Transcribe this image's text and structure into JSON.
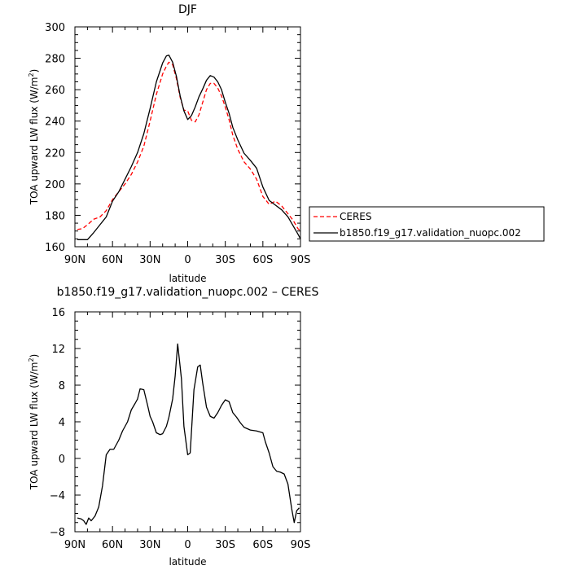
{
  "chart_data": [
    {
      "type": "line",
      "title": "DJF",
      "xlabel": "latitude",
      "ylabel": "TOA upward LW flux (W/m²)",
      "ylabel_parts": {
        "main": "TOA upward LW flux (W/m",
        "sup": "2",
        "close": ")"
      },
      "xlim": [
        90,
        -90
      ],
      "ylim": [
        160,
        300
      ],
      "x_ticks": [
        {
          "value": 90,
          "label": "90N"
        },
        {
          "value": 60,
          "label": "60N"
        },
        {
          "value": 30,
          "label": "30N"
        },
        {
          "value": 0,
          "label": "0"
        },
        {
          "value": -30,
          "label": "30S"
        },
        {
          "value": -60,
          "label": "60S"
        },
        {
          "value": -90,
          "label": "90S"
        }
      ],
      "y_ticks": [
        160,
        180,
        200,
        220,
        240,
        260,
        280,
        300
      ],
      "y_tick_labels": [
        "160",
        "180",
        "200",
        "220",
        "240",
        "260",
        "280",
        "300"
      ],
      "legend": {
        "placement": "right",
        "entries": [
          "CERES",
          "b1850.f19_g17.validation_nuopc.002"
        ]
      },
      "series": [
        {
          "name": "CERES",
          "color": "#ff0000",
          "dash": "dashed",
          "x": [
            88,
            84,
            80,
            75,
            70,
            65,
            60,
            55,
            50,
            45,
            40,
            35,
            30,
            25,
            20,
            17,
            15,
            12,
            9,
            6,
            3,
            0,
            -3,
            -6,
            -9,
            -12,
            -15,
            -18,
            -21,
            -24,
            -27,
            -30,
            -33,
            -36,
            -40,
            -45,
            -50,
            -55,
            -60,
            -65,
            -70,
            -75,
            -80,
            -84,
            -88,
            -90
          ],
          "y": [
            171,
            171.5,
            174,
            177.5,
            179,
            183,
            190,
            195,
            200,
            206,
            214,
            224,
            240,
            257,
            270,
            275,
            277.5,
            276,
            267,
            255,
            247,
            246.5,
            240.5,
            239.5,
            244,
            252,
            260,
            264,
            264,
            261,
            256,
            249,
            241,
            231,
            222,
            214,
            209.5,
            203,
            192,
            187,
            189,
            186,
            181,
            177,
            171.5,
            170
          ]
        },
        {
          "name": "b1850.f19_g17.validation_nuopc.002",
          "color": "#000000",
          "dash": "solid",
          "x": [
            88,
            84,
            80,
            75,
            70,
            65,
            60,
            55,
            50,
            45,
            40,
            35,
            30,
            25,
            20,
            17,
            15,
            12,
            9,
            6,
            3,
            0,
            -3,
            -6,
            -9,
            -12,
            -15,
            -18,
            -21,
            -24,
            -27,
            -30,
            -33,
            -36,
            -40,
            -45,
            -50,
            -55,
            -60,
            -65,
            -70,
            -75,
            -80,
            -84,
            -88,
            -90
          ],
          "y": [
            164.5,
            164.5,
            164.5,
            169,
            174,
            179,
            189,
            195,
            203,
            211,
            220,
            232,
            248,
            265,
            277,
            281.5,
            282,
            277.5,
            268.5,
            256,
            246.5,
            241,
            243.5,
            249,
            255.5,
            260.5,
            266,
            269,
            268,
            265,
            260,
            252,
            245,
            236,
            228,
            219.5,
            215,
            210,
            198,
            189.5,
            186.5,
            183.5,
            179,
            173.5,
            168,
            165
          ]
        }
      ]
    },
    {
      "type": "line",
      "title": "b1850.f19_g17.validation_nuopc.002 – CERES",
      "xlabel": "latitude",
      "ylabel": "TOA upward LW flux (W/m²)",
      "ylabel_parts": {
        "main": "TOA upward LW flux (W/m",
        "sup": "2",
        "close": ")"
      },
      "xlim": [
        90,
        -90
      ],
      "ylim": [
        -8,
        16
      ],
      "x_ticks": [
        {
          "value": 90,
          "label": "90N"
        },
        {
          "value": 60,
          "label": "60N"
        },
        {
          "value": 30,
          "label": "30N"
        },
        {
          "value": 0,
          "label": "0"
        },
        {
          "value": -30,
          "label": "30S"
        },
        {
          "value": -60,
          "label": "60S"
        },
        {
          "value": -90,
          "label": "90S"
        }
      ],
      "y_ticks": [
        -8,
        -4,
        0,
        4,
        8,
        12,
        16
      ],
      "y_tick_labels": [
        "−8",
        "−4",
        "0",
        "4",
        "8",
        "12",
        "16"
      ],
      "series": [
        {
          "color": "#000000",
          "dash": "solid",
          "x": [
            88,
            85,
            83,
            81,
            79,
            77,
            74,
            71,
            68,
            65,
            62,
            59,
            55,
            52,
            48,
            45,
            42,
            40,
            38,
            35,
            32,
            30,
            28,
            25,
            22,
            20,
            17,
            15,
            12,
            10,
            8,
            5,
            3,
            0,
            -2,
            -5,
            -8,
            -10,
            -12,
            -15,
            -18,
            -21,
            -24,
            -27,
            -30,
            -33,
            -36,
            -39,
            -42,
            -45,
            -50,
            -55,
            -60,
            -62,
            -65,
            -68,
            -71,
            -74,
            -77,
            -80,
            -83,
            -85,
            -87,
            -89
          ],
          "y": [
            -6.5,
            -6.6,
            -6.8,
            -7.2,
            -6.5,
            -6.8,
            -6.3,
            -5.3,
            -3.0,
            0.4,
            1.0,
            1.0,
            2.0,
            3.0,
            4.0,
            5.3,
            6.0,
            6.5,
            7.6,
            7.5,
            5.8,
            4.6,
            4.0,
            2.8,
            2.6,
            2.7,
            3.5,
            4.5,
            6.5,
            9.0,
            12.5,
            8.7,
            3.5,
            0.4,
            0.6,
            7.5,
            10.0,
            10.2,
            8.2,
            5.6,
            4.6,
            4.4,
            5.0,
            5.8,
            6.4,
            6.2,
            5.0,
            4.5,
            3.9,
            3.4,
            3.1,
            3.0,
            2.8,
            1.8,
            0.6,
            -0.9,
            -1.4,
            -1.5,
            -1.7,
            -2.8,
            -5.5,
            -7.0,
            -5.7,
            -5.4
          ]
        }
      ]
    }
  ]
}
